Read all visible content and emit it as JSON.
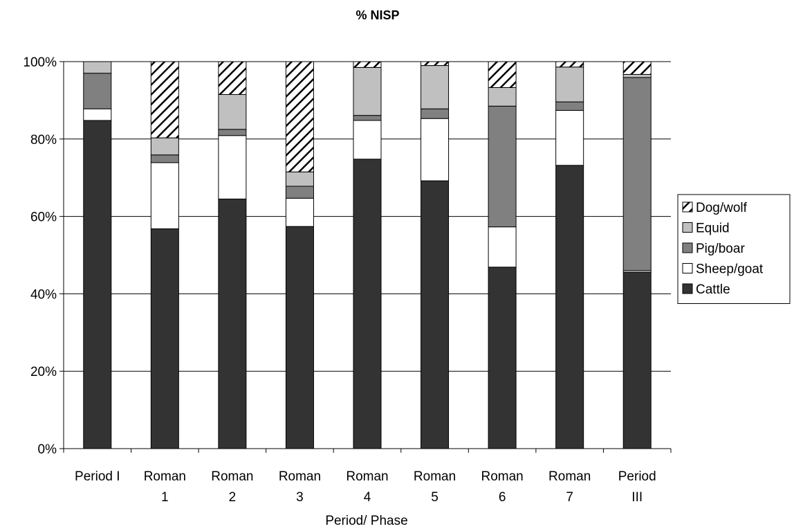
{
  "chart_data": {
    "type": "bar",
    "stacked": true,
    "percent": true,
    "title": "% NISP",
    "xlabel": "Period/ Phase",
    "ylabel": "",
    "ylim": [
      0,
      100
    ],
    "y_ticks": [
      "0%",
      "20%",
      "40%",
      "60%",
      "80%",
      "100%"
    ],
    "y_tick_values": [
      0,
      20,
      40,
      60,
      80,
      100
    ],
    "grid": true,
    "legend_position": "right",
    "categories": [
      [
        "Period I"
      ],
      [
        "Roman",
        "1"
      ],
      [
        "Roman",
        "2"
      ],
      [
        "Roman",
        "3"
      ],
      [
        "Roman",
        "4"
      ],
      [
        "Roman",
        "5"
      ],
      [
        "Roman",
        "6"
      ],
      [
        "Roman",
        "7"
      ],
      [
        "Period",
        "III"
      ]
    ],
    "series": [
      {
        "name": "Cattle",
        "fill": "#333333",
        "pattern": "solid",
        "values": [
          84.8,
          56.8,
          64.5,
          57.4,
          74.8,
          69.2,
          46.9,
          73.2,
          45.6
        ]
      },
      {
        "name": "Sheep/goat",
        "fill": "#ffffff",
        "pattern": "solid",
        "values": [
          3.0,
          17.1,
          16.4,
          7.3,
          10.0,
          16.1,
          10.4,
          14.2,
          0.4
        ]
      },
      {
        "name": "Pig/boar",
        "fill": "#808080",
        "pattern": "solid",
        "values": [
          9.2,
          2.0,
          1.6,
          3.1,
          1.3,
          2.5,
          31.2,
          2.2,
          49.9
        ]
      },
      {
        "name": "Equid",
        "fill": "#c0c0c0",
        "pattern": "solid",
        "values": [
          3.0,
          4.4,
          9.0,
          3.7,
          12.4,
          11.2,
          4.8,
          9.0,
          0.8
        ]
      },
      {
        "name": "Dog/wolf",
        "fill": "#ffffff",
        "pattern": "hatch",
        "values": [
          0.0,
          19.7,
          8.5,
          28.5,
          1.5,
          1.0,
          6.7,
          1.4,
          3.3
        ]
      }
    ],
    "colors": {
      "gridline": "#000000",
      "bar_outline": "#000000"
    }
  }
}
